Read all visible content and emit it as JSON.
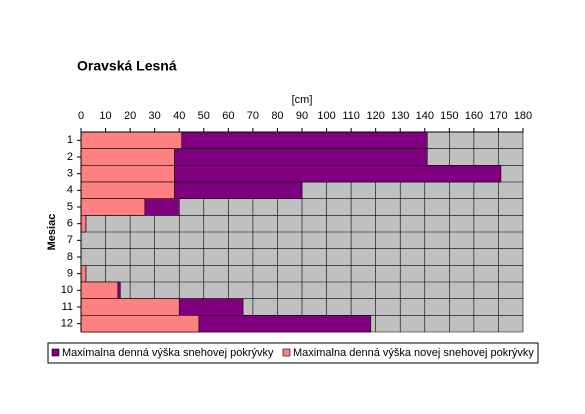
{
  "chart_data": {
    "type": "bar",
    "orientation": "horizontal",
    "overlap": true,
    "title": "Oravská Lesná",
    "x_label": "[cm]",
    "y_label": "Mesiac",
    "categories": [
      "1",
      "2",
      "3",
      "4",
      "5",
      "6",
      "7",
      "8",
      "9",
      "10",
      "11",
      "12"
    ],
    "series": [
      {
        "name": "Maximalna denná výška snehovej pokrývky",
        "color": "#800080",
        "values": [
          141,
          141,
          171,
          90,
          40,
          2,
          0,
          0,
          2,
          16,
          66,
          118
        ]
      },
      {
        "name": "Maximalna denná výška novej snehovej pokrývky",
        "color": "#ff8080",
        "values": [
          41,
          38,
          38,
          38,
          26,
          2,
          0,
          0,
          2,
          15,
          40,
          48
        ]
      }
    ],
    "xlim": [
      0,
      180
    ],
    "xticks": [
      0,
      10,
      20,
      30,
      40,
      50,
      60,
      70,
      80,
      90,
      100,
      110,
      120,
      130,
      140,
      150,
      160,
      170,
      180
    ],
    "grid": true,
    "legend": "bottom"
  }
}
